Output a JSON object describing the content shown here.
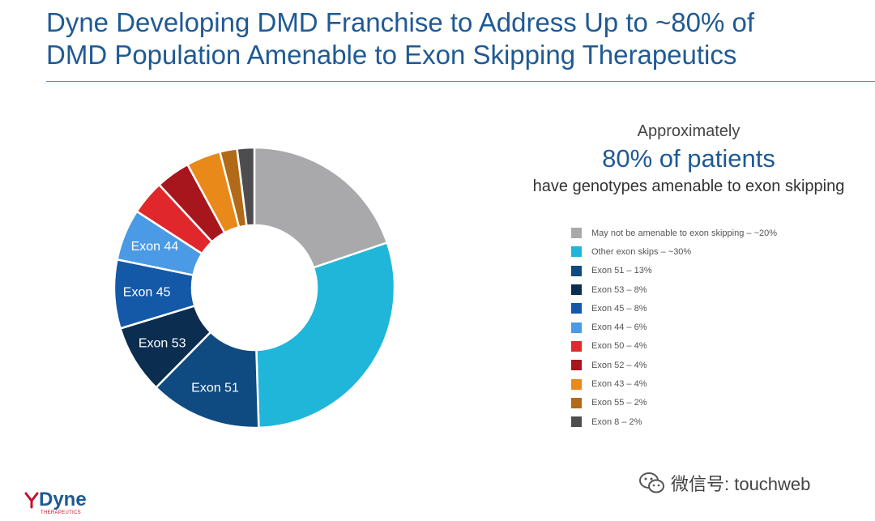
{
  "header": {
    "title_line1": "Dyne Developing DMD Franchise to Address Up to ~80% of",
    "title_line2": "DMD Population Amenable to Exon Skipping Therapeutics"
  },
  "summary": {
    "top": "Approximately",
    "highlight": "80% of patients",
    "bottom": "have genotypes amenable to exon skipping"
  },
  "chart_data": {
    "type": "pie",
    "title": "",
    "slices": [
      {
        "label": "",
        "legend": "May not be amenable to exon skipping – ~20%",
        "value": 20,
        "color": "#a9a9ab"
      },
      {
        "label": "",
        "legend": "Other exon skips – ~30%",
        "value": 30,
        "color": "#1fb6d9"
      },
      {
        "label": "Exon 51",
        "legend": "Exon 51 – 13%",
        "value": 13,
        "color": "#0f4a80"
      },
      {
        "label": "Exon 53",
        "legend": "Exon 53 – 8%",
        "value": 8,
        "color": "#0b2d4f"
      },
      {
        "label": "Exon 45",
        "legend": "Exon 45 – 8%",
        "value": 8,
        "color": "#1458a8"
      },
      {
        "label": "Exon 44",
        "legend": "Exon 44 – 6%",
        "value": 6,
        "color": "#4a9ae6"
      },
      {
        "label": "",
        "legend": "Exon 50 – 4%",
        "value": 4,
        "color": "#e0282c"
      },
      {
        "label": "",
        "legend": "Exon 52 – 4%",
        "value": 4,
        "color": "#a8161d"
      },
      {
        "label": "",
        "legend": "Exon 43 – 4%",
        "value": 4,
        "color": "#e8891a"
      },
      {
        "label": "",
        "legend": "Exon 55 – 2%",
        "value": 2,
        "color": "#b06a18"
      },
      {
        "label": "",
        "legend": "Exon 8 – 2%",
        "value": 2,
        "color": "#4d4d4f"
      }
    ],
    "legend_position": "right"
  },
  "watermark": {
    "text": "微信号: touchweb"
  },
  "logo": {
    "text": "Dyne",
    "sub": "THERAPEUTICS",
    "y_color": "#c8102e"
  }
}
